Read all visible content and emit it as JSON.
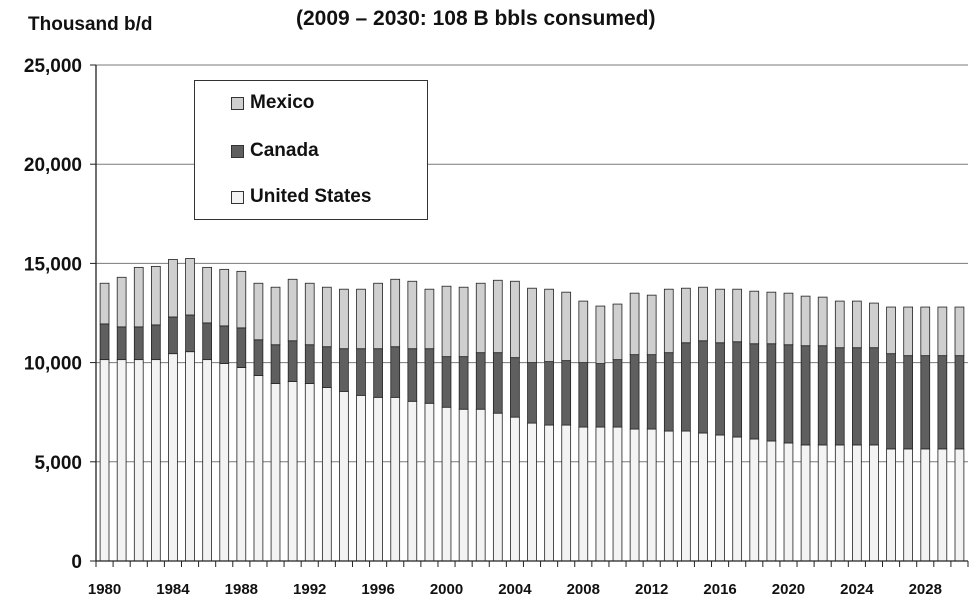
{
  "chart_data": {
    "type": "bar",
    "stacked": true,
    "title": "(2009 – 2030: 108 B bbls consumed)",
    "ylabel": "Thousand b/d",
    "xlabel": "",
    "ylim": [
      0,
      25000
    ],
    "yticks": [
      "0",
      "5,000",
      "10,000",
      "15,000",
      "20,000",
      "25,000"
    ],
    "ytick_values": [
      0,
      5000,
      10000,
      15000,
      20000,
      25000
    ],
    "xtick_labels": [
      "1980",
      "1984",
      "1988",
      "1992",
      "1996",
      "2000",
      "2004",
      "2008",
      "2012",
      "2016",
      "2020",
      "2024",
      "2028"
    ],
    "grid": true,
    "legend_position": "top-left",
    "categories": [
      1980,
      1981,
      1982,
      1983,
      1984,
      1985,
      1986,
      1987,
      1988,
      1989,
      1990,
      1991,
      1992,
      1993,
      1994,
      1995,
      1996,
      1997,
      1998,
      1999,
      2000,
      2001,
      2002,
      2003,
      2004,
      2005,
      2006,
      2007,
      2008,
      2009,
      2010,
      2011,
      2012,
      2013,
      2014,
      2015,
      2016,
      2017,
      2018,
      2019,
      2020,
      2021,
      2022,
      2023,
      2024,
      2025,
      2026,
      2027,
      2028,
      2029,
      2030
    ],
    "series": [
      {
        "name": "United States",
        "color": "#f3f3f3",
        "values": [
          10150,
          10150,
          10150,
          10150,
          10450,
          10550,
          10150,
          9950,
          9750,
          9350,
          8950,
          9050,
          8950,
          8750,
          8550,
          8350,
          8250,
          8250,
          8050,
          7950,
          7750,
          7650,
          7650,
          7450,
          7250,
          6950,
          6850,
          6850,
          6750,
          6750,
          6750,
          6650,
          6650,
          6550,
          6550,
          6450,
          6350,
          6250,
          6150,
          6050,
          5950,
          5850,
          5850,
          5850,
          5850,
          5850,
          5650,
          5650,
          5650,
          5650,
          5650
        ]
      },
      {
        "name": "Canada",
        "color": "#5f5f5f",
        "values": [
          1800,
          1650,
          1650,
          1750,
          1850,
          1850,
          1850,
          1900,
          2000,
          1800,
          1950,
          2050,
          1950,
          2050,
          2150,
          2350,
          2450,
          2550,
          2650,
          2750,
          2550,
          2650,
          2850,
          3050,
          3000,
          3050,
          3200,
          3250,
          3250,
          3200,
          3400,
          3750,
          3750,
          3950,
          4450,
          4650,
          4650,
          4800,
          4800,
          4900,
          4950,
          5000,
          5000,
          4900,
          4900,
          4900,
          4800,
          4700,
          4700,
          4700,
          4700
        ]
      },
      {
        "name": "Mexico",
        "color": "#cfcfcf",
        "values": [
          2050,
          2500,
          3000,
          2950,
          2900,
          2850,
          2800,
          2850,
          2850,
          2850,
          2900,
          3100,
          3100,
          3000,
          3000,
          3000,
          3300,
          3400,
          3400,
          3000,
          3550,
          3500,
          3500,
          3650,
          3850,
          3750,
          3650,
          3450,
          3100,
          2900,
          2800,
          3100,
          3000,
          3200,
          2750,
          2700,
          2700,
          2650,
          2650,
          2600,
          2600,
          2500,
          2450,
          2350,
          2350,
          2250,
          2350,
          2450,
          2450,
          2450,
          2450
        ]
      }
    ]
  }
}
